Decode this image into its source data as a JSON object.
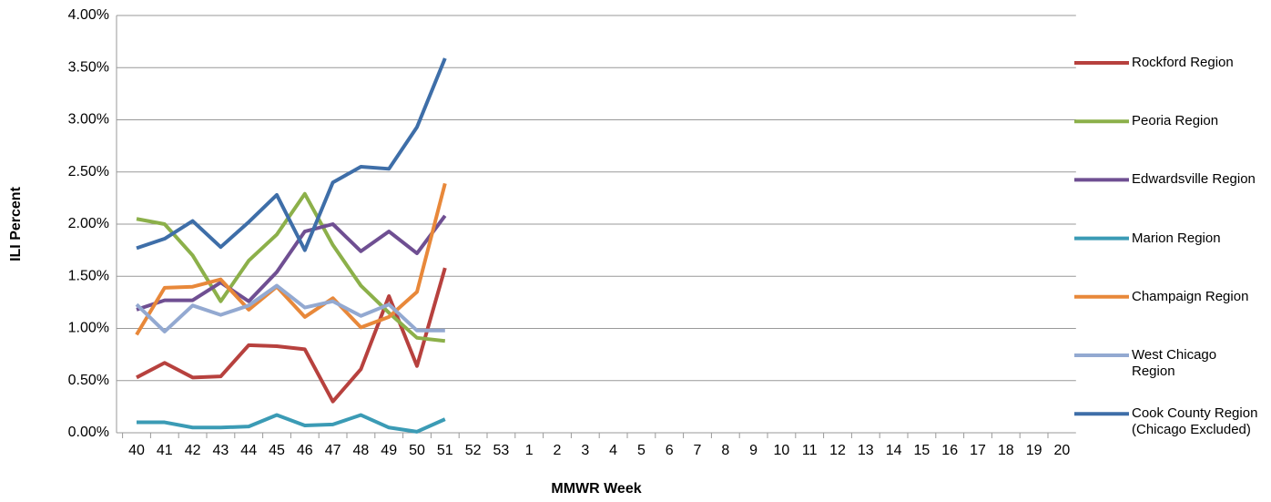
{
  "chart_data": {
    "type": "line",
    "ylabel": "ILI Percent",
    "xlabel": "MMWR Week",
    "categories": [
      40,
      41,
      42,
      43,
      44,
      45,
      46,
      47,
      48,
      49,
      50,
      51,
      52,
      53,
      1,
      2,
      3,
      4,
      5,
      6,
      7,
      8,
      9,
      10,
      11,
      12,
      13,
      14,
      15,
      16,
      17,
      18,
      19,
      20
    ],
    "ylim": [
      0,
      4
    ],
    "yticks": [
      {
        "value": 0,
        "label": "0.00%"
      },
      {
        "value": 0.5,
        "label": "0.50%"
      },
      {
        "value": 1,
        "label": "1.00%"
      },
      {
        "value": 1.5,
        "label": "1.50%"
      },
      {
        "value": 2,
        "label": "2.00%"
      },
      {
        "value": 2.5,
        "label": "2.50%"
      },
      {
        "value": 3,
        "label": "3.00%"
      },
      {
        "value": 3.5,
        "label": "3.50%"
      },
      {
        "value": 4,
        "label": "4.00%"
      }
    ],
    "grid": true,
    "legend": "right",
    "series": [
      {
        "name": "Rockford Region",
        "color": "#b7413e",
        "values": [
          0.53,
          0.67,
          0.53,
          0.54,
          0.84,
          0.83,
          0.8,
          0.3,
          0.61,
          1.31,
          0.64,
          1.58,
          null,
          null,
          null,
          null,
          null,
          null,
          null,
          null,
          null,
          null,
          null,
          null,
          null,
          null,
          null,
          null,
          null,
          null,
          null,
          null,
          null,
          null
        ]
      },
      {
        "name": "Peoria Region",
        "color": "#8cb04a",
        "values": [
          2.05,
          2.0,
          1.7,
          1.26,
          1.65,
          1.9,
          2.29,
          1.8,
          1.41,
          1.15,
          0.91,
          0.88,
          null,
          null,
          null,
          null,
          null,
          null,
          null,
          null,
          null,
          null,
          null,
          null,
          null,
          null,
          null,
          null,
          null,
          null,
          null,
          null,
          null,
          null
        ]
      },
      {
        "name": "Edwardsville Region",
        "color": "#6f4f92",
        "values": [
          1.18,
          1.27,
          1.27,
          1.44,
          1.26,
          1.54,
          1.93,
          2.0,
          1.74,
          1.93,
          1.72,
          2.08,
          null,
          null,
          null,
          null,
          null,
          null,
          null,
          null,
          null,
          null,
          null,
          null,
          null,
          null,
          null,
          null,
          null,
          null,
          null,
          null,
          null,
          null
        ]
      },
      {
        "name": "Marion Region",
        "color": "#3b9bb5",
        "values": [
          0.1,
          0.1,
          0.05,
          0.05,
          0.06,
          0.17,
          0.07,
          0.08,
          0.17,
          0.05,
          0.01,
          0.13,
          null,
          null,
          null,
          null,
          null,
          null,
          null,
          null,
          null,
          null,
          null,
          null,
          null,
          null,
          null,
          null,
          null,
          null,
          null,
          null,
          null,
          null
        ]
      },
      {
        "name": "Champaign Region",
        "color": "#e8883a",
        "values": [
          0.94,
          1.39,
          1.4,
          1.47,
          1.18,
          1.4,
          1.11,
          1.29,
          1.01,
          1.11,
          1.35,
          2.39,
          null,
          null,
          null,
          null,
          null,
          null,
          null,
          null,
          null,
          null,
          null,
          null,
          null,
          null,
          null,
          null,
          null,
          null,
          null,
          null,
          null,
          null
        ]
      },
      {
        "name": "West Chicago Region",
        "color": "#93a9d1",
        "values": [
          1.23,
          0.97,
          1.22,
          1.13,
          1.22,
          1.41,
          1.2,
          1.26,
          1.12,
          1.23,
          0.98,
          0.98,
          null,
          null,
          null,
          null,
          null,
          null,
          null,
          null,
          null,
          null,
          null,
          null,
          null,
          null,
          null,
          null,
          null,
          null,
          null,
          null,
          null,
          null
        ]
      },
      {
        "name": "Cook County Region (Chicago Excluded)",
        "color": "#3e6ea8",
        "values": [
          1.77,
          1.86,
          2.03,
          1.78,
          2.02,
          2.28,
          1.75,
          2.4,
          2.55,
          2.53,
          2.93,
          3.59,
          null,
          null,
          null,
          null,
          null,
          null,
          null,
          null,
          null,
          null,
          null,
          null,
          null,
          null,
          null,
          null,
          null,
          null,
          null,
          null,
          null,
          null
        ]
      }
    ]
  }
}
